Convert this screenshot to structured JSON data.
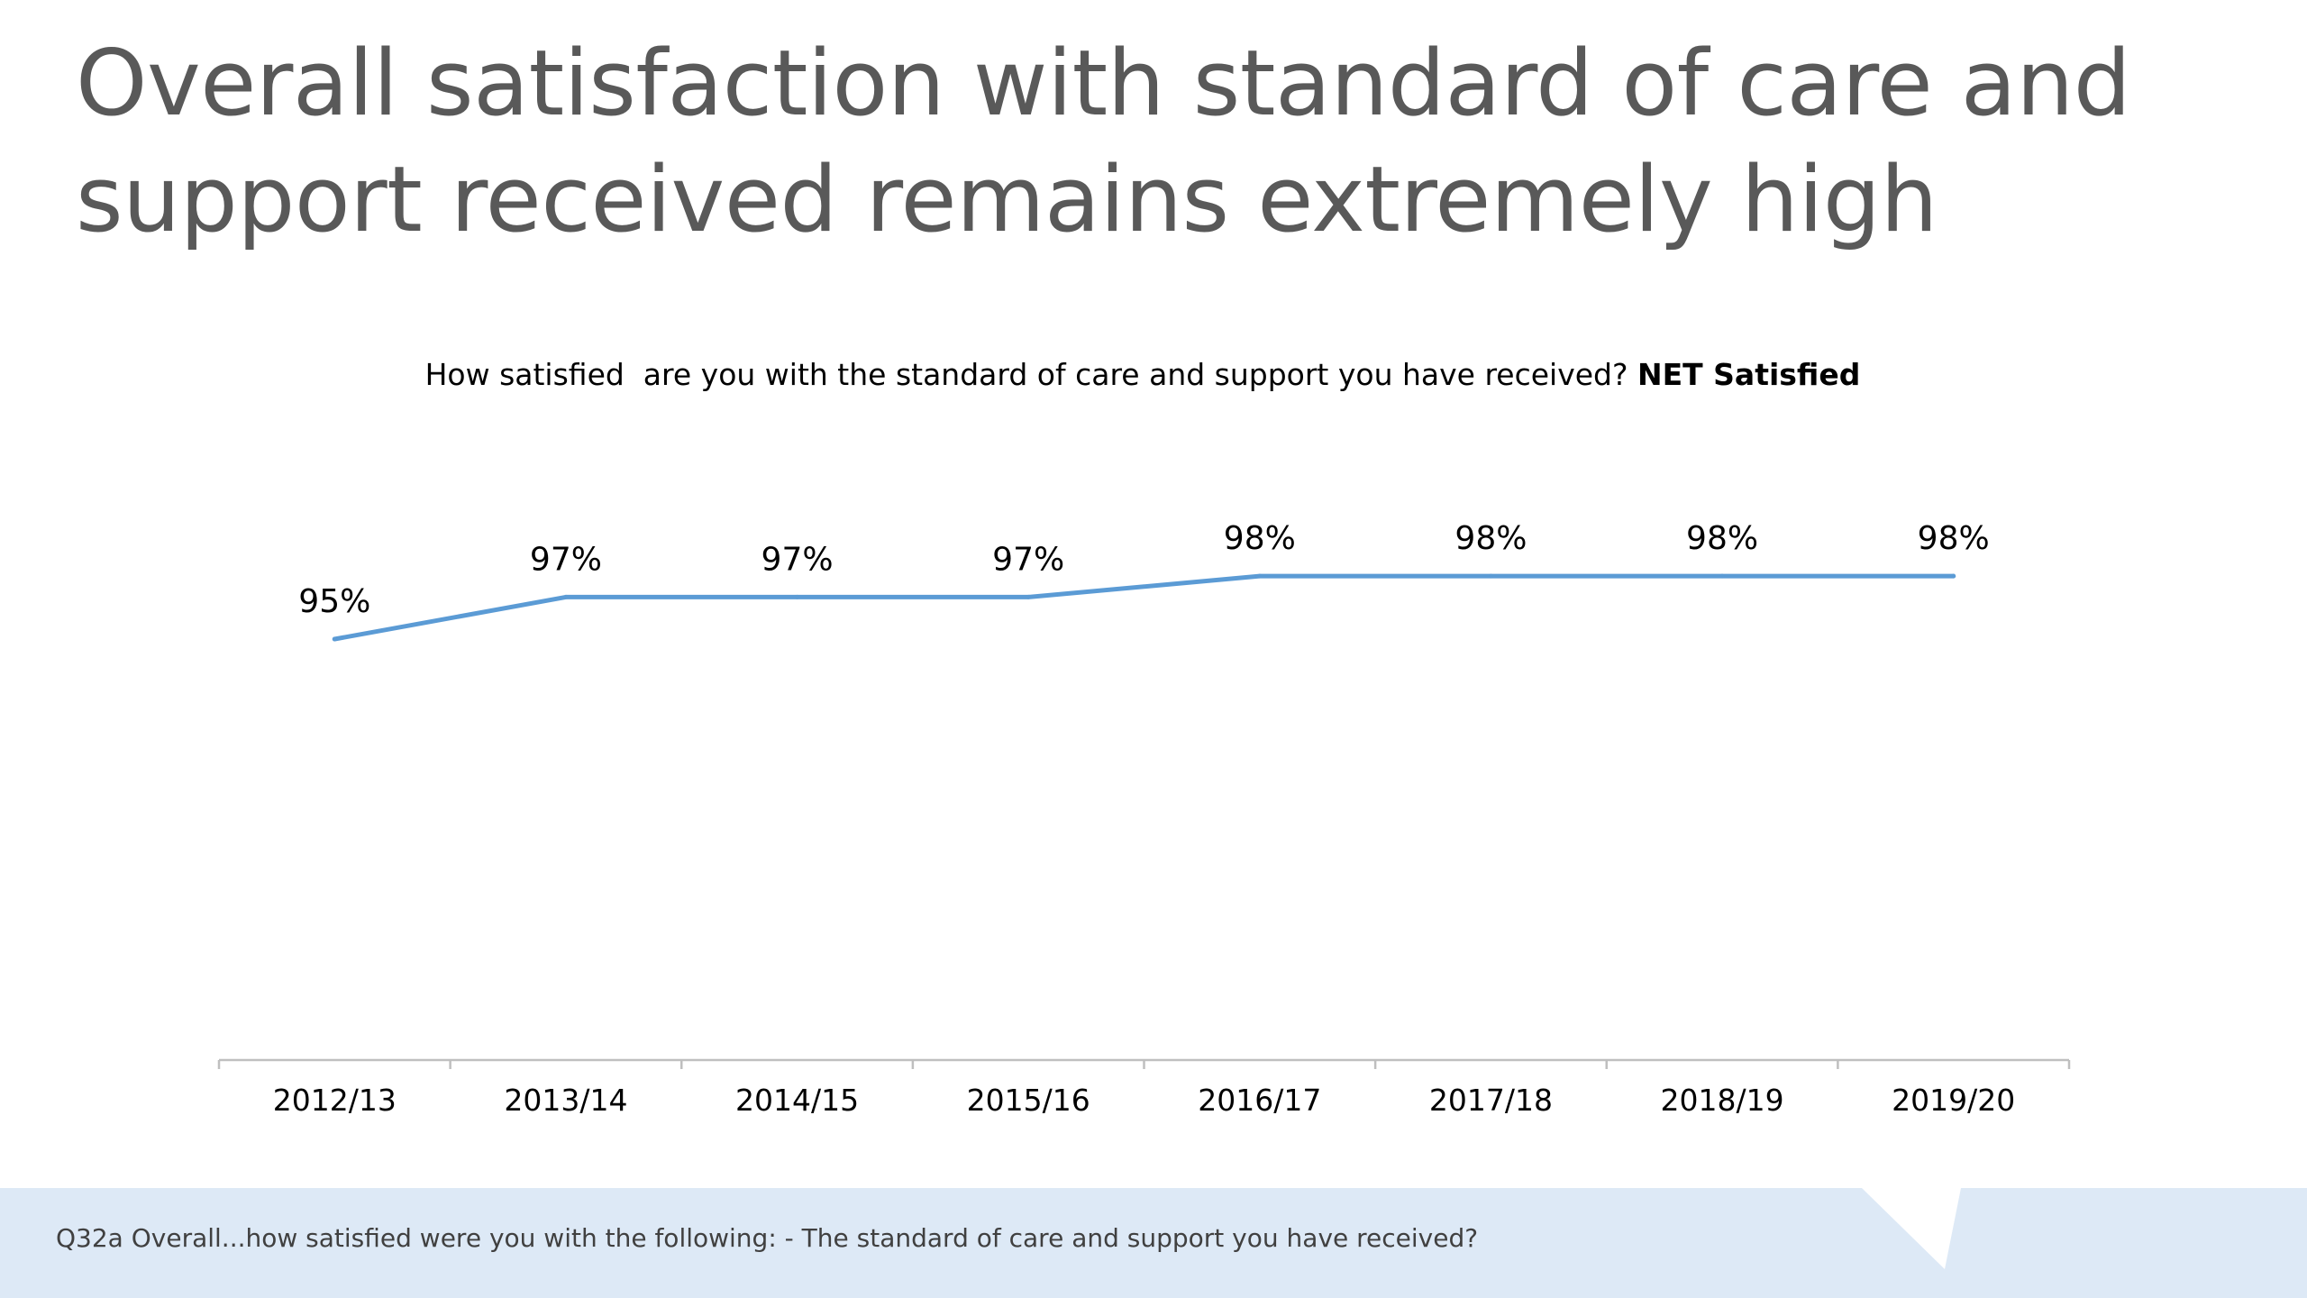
{
  "slide": {
    "title": "Overall satisfaction with standard of care and support received remains extremely high",
    "question_text": "How satisfied  are you with the standard of care and support you have received? ",
    "question_emphasis": "NET Satisfied",
    "footnote": "Q32a Overall...how satisfied were you with the following: - The standard of care and support you have received?"
  },
  "colors": {
    "line": "#5b9bd5",
    "axis": "#bfbfbf",
    "title": "#595959",
    "footer_band": "#dde9f6"
  },
  "chart_data": {
    "type": "line",
    "title": "",
    "xlabel": "",
    "ylabel": "",
    "categories": [
      "2012/13",
      "2013/14",
      "2014/15",
      "2015/16",
      "2016/17",
      "2017/18",
      "2018/19",
      "2019/20"
    ],
    "series": [
      {
        "values": [
          95,
          97,
          97,
          97,
          98,
          98,
          98,
          98
        ],
        "data_labels": [
          "95%",
          "97%",
          "97%",
          "97%",
          "98%",
          "98%",
          "98%",
          "98%"
        ]
      }
    ],
    "ylim": [
      0,
      100
    ],
    "grid": false,
    "legend": "none"
  }
}
